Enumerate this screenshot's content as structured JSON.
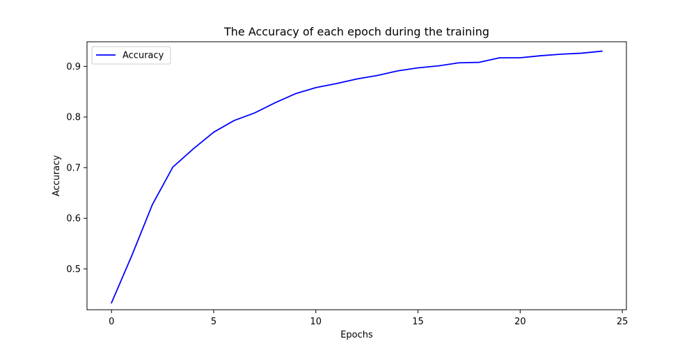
{
  "chart_data": {
    "type": "line",
    "title": "The Accuracy of each epoch during the training",
    "xlabel": "Epochs",
    "ylabel": "Accuracy",
    "xlim": [
      -1.2,
      25.2
    ],
    "ylim": [
      0.4194,
      0.9486
    ],
    "xticks": [
      0,
      5,
      10,
      15,
      20,
      25
    ],
    "yticks": [
      0.5,
      0.6,
      0.7,
      0.8,
      0.9
    ],
    "ytick_labels": [
      "0.5",
      "0.6",
      "0.7",
      "0.8",
      "0.9"
    ],
    "grid": false,
    "legend": {
      "position": "top-left"
    },
    "series": [
      {
        "name": "Accuracy",
        "color": "#0000ff",
        "x": [
          0,
          1,
          2,
          3,
          4,
          5,
          6,
          7,
          8,
          9,
          10,
          11,
          12,
          13,
          14,
          15,
          16,
          17,
          18,
          19,
          20,
          21,
          22,
          23,
          24
        ],
        "y": [
          0.433,
          0.527,
          0.627,
          0.701,
          0.737,
          0.77,
          0.793,
          0.808,
          0.828,
          0.846,
          0.858,
          0.866,
          0.875,
          0.882,
          0.891,
          0.897,
          0.901,
          0.907,
          0.908,
          0.917,
          0.917,
          0.921,
          0.924,
          0.926,
          0.93
        ]
      }
    ]
  }
}
